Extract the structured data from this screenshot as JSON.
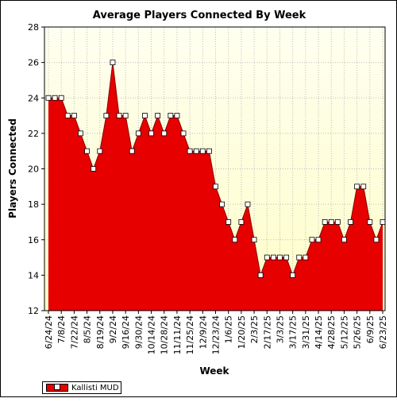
{
  "chart_data": {
    "type": "area",
    "title": "Average Players Connected By Week",
    "xlabel": "Week",
    "ylabel": "Players Connected",
    "ylim": [
      12,
      28
    ],
    "yticks": [
      12,
      14,
      16,
      18,
      20,
      22,
      24,
      26,
      28
    ],
    "grid": true,
    "legend_placement": "bottom-left",
    "x_tick_labels": [
      "6/24/24",
      "7/8/24",
      "7/22/24",
      "8/5/24",
      "8/19/24",
      "9/2/24",
      "9/16/24",
      "9/30/24",
      "10/14/24",
      "10/28/24",
      "11/11/24",
      "11/25/24",
      "12/9/24",
      "12/23/24",
      "1/6/25",
      "1/20/25",
      "2/3/25",
      "2/17/25",
      "3/3/25",
      "3/17/25",
      "3/31/25",
      "4/14/25",
      "4/28/25",
      "5/12/25",
      "5/26/25",
      "6/9/25",
      "6/23/25"
    ],
    "series": [
      {
        "name": "Kallisti MUD",
        "color": "#e60000",
        "values": [
          24,
          24,
          24,
          23,
          23,
          22,
          21,
          20,
          21,
          23,
          26,
          23,
          23,
          21,
          22,
          23,
          22,
          23,
          22,
          23,
          23,
          22,
          21,
          21,
          21,
          21,
          19,
          18,
          17,
          16,
          17,
          18,
          16,
          14,
          15,
          15,
          15,
          15,
          14,
          15,
          15,
          16,
          16,
          17,
          17,
          17,
          16,
          17,
          19,
          19,
          17,
          16,
          17
        ]
      }
    ]
  },
  "colors": {
    "plot_bg_top": "#fffff0",
    "plot_bg_bottom": "#fdfdc8",
    "area_fill": "#e60000",
    "grid": "#bdbdbd"
  }
}
